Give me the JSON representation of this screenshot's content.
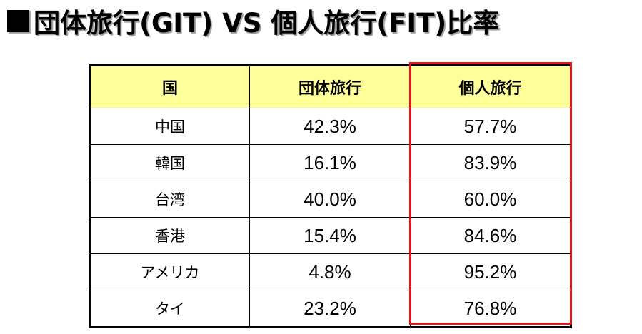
{
  "slide": {
    "title": "団体旅行(GIT) VS 個人旅行(FIT)比率"
  },
  "table": {
    "headers": [
      "国",
      "団体旅行",
      "個人旅行"
    ],
    "rows": [
      {
        "country": "中国",
        "git": "42.3%",
        "fit": "57.7%"
      },
      {
        "country": "韓国",
        "git": "16.1%",
        "fit": "83.9%"
      },
      {
        "country": "台湾",
        "git": "40.0%",
        "fit": "60.0%"
      },
      {
        "country": "香港",
        "git": "15.4%",
        "fit": "84.6%"
      },
      {
        "country": "アメリカ",
        "git": "4.8%",
        "fit": "95.2%"
      },
      {
        "country": "タイ",
        "git": "23.2%",
        "fit": "76.8%"
      }
    ]
  },
  "colors": {
    "header_background": "#ffff99",
    "highlight_border": "#e8141a",
    "text": "#000000"
  }
}
